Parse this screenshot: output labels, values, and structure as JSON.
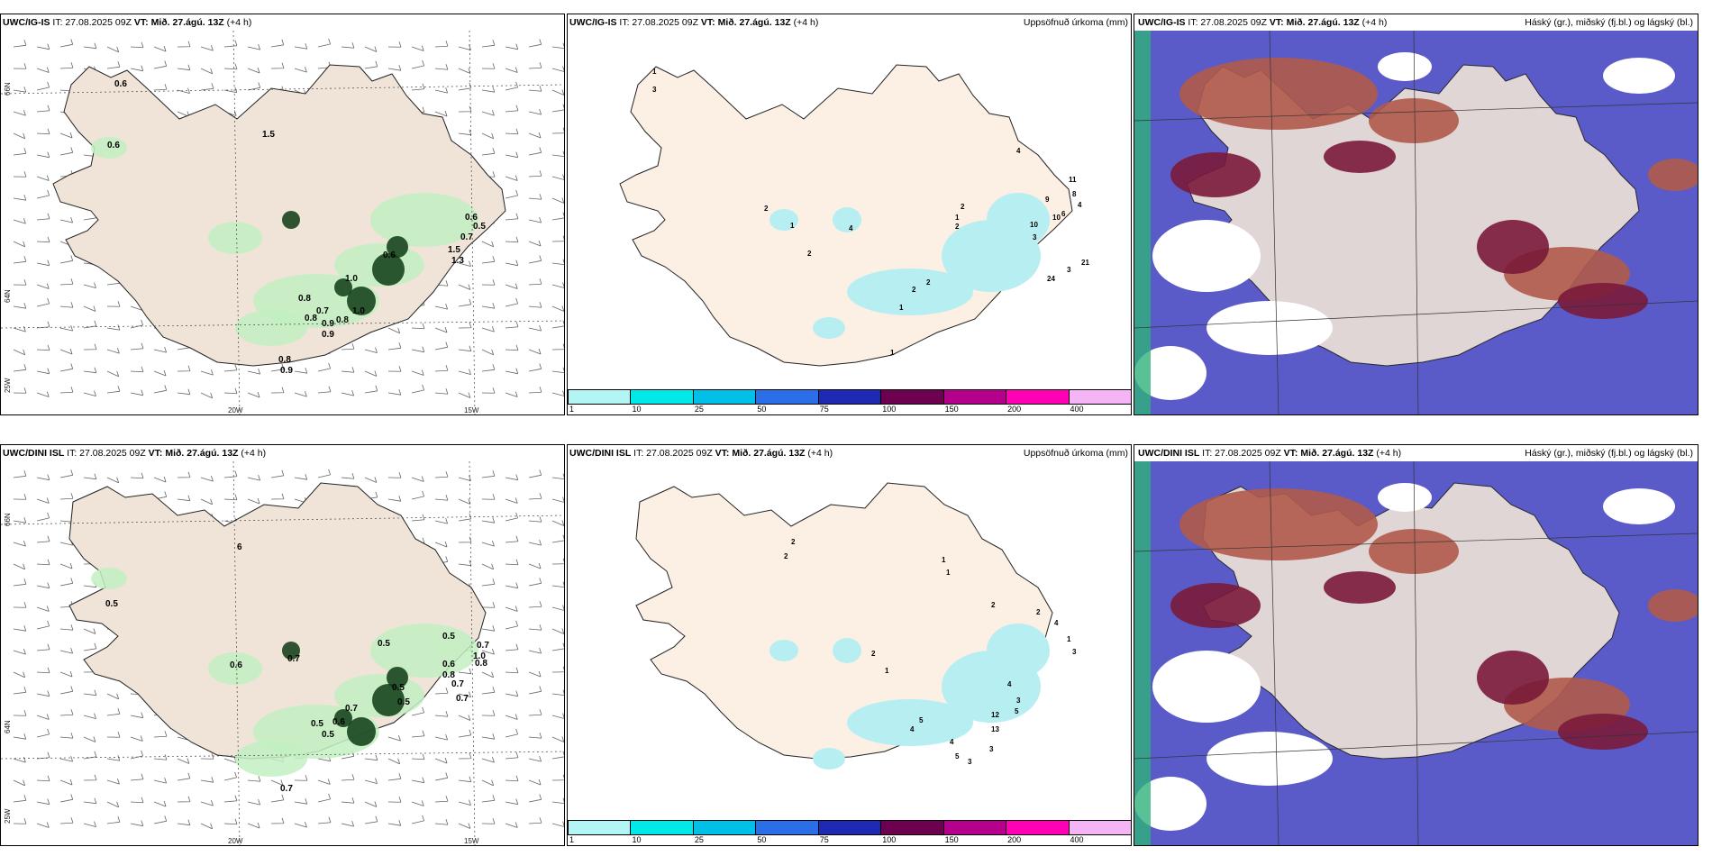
{
  "panels": {
    "row1": {
      "wind": {
        "model": "UWC/IG-IS",
        "it": "IT: 27.08.2025 09Z",
        "vt": "VT: Mið. 27.ágú. 13Z",
        "lead": "(+4 h)"
      },
      "precip": {
        "model": "UWC/IG-IS",
        "it": "IT: 27.08.2025 09Z",
        "vt": "VT: Mið. 27.ágú. 13Z",
        "lead": "(+4 h)",
        "right_title": "Uppsöfnuð úrkoma (mm)"
      },
      "cloud": {
        "model": "UWC/IG-IS",
        "it": "IT: 27.08.2025 09Z",
        "vt": "VT: Mið. 27.ágú. 13Z",
        "lead": "(+4 h)",
        "right_title": "Háský (gr.), miðský (fj.bl.) og lágský (bl.)"
      }
    },
    "row2": {
      "wind": {
        "model": "UWC/DINI ISL",
        "it": "IT: 27.08.2025 09Z",
        "vt": "VT: Mið. 27.ágú. 13Z",
        "lead": "(+4 h)"
      },
      "precip": {
        "model": "UWC/DINI ISL",
        "it": "IT: 27.08.2025 09Z",
        "vt": "VT: Mið. 27.ágú. 13Z",
        "lead": "(+4 h)",
        "right_title": "Uppsöfnuð úrkoma (mm)"
      },
      "cloud": {
        "model": "UWC/DINI ISL",
        "it": "IT: 27.08.2025 09Z",
        "vt": "VT: Mið. 27.ágú. 13Z",
        "lead": "(+4 h)",
        "right_title": "Háský (gr.), miðský (fj.bl.) og lágský (bl.)"
      }
    }
  },
  "axis_labels": {
    "lat_66": "66N",
    "lat_64": "64N",
    "lon_20": "20W",
    "lon_15": "15W",
    "lon_25": "25W"
  },
  "colorbar": {
    "labels": [
      "1",
      "10",
      "25",
      "50",
      "75",
      "100",
      "150",
      "200",
      "400"
    ],
    "colors": [
      "#b3f5f5",
      "#00e8e8",
      "#00c0e8",
      "#2a6ee8",
      "#1e2ab4",
      "#6e0050",
      "#b4008c",
      "#ff00b4",
      "#f5b4f5"
    ]
  },
  "wind_labels_row1": [
    "0.6",
    "1.5",
    "0.6",
    "0.6",
    "0.5",
    "0.7",
    "0.6",
    "1.0",
    "1.5",
    "1.3",
    "0.8",
    "0.7",
    "0.8",
    "1.0",
    "0.9",
    "0.8",
    "0.9",
    "0.8",
    "0.9"
  ],
  "wind_labels_row2": [
    "6",
    "0.5",
    "0.6",
    "0.7",
    "0.5",
    "0.5",
    "0.6",
    "0.8",
    "1.0",
    "0.7",
    "0.5",
    "0.7",
    "0.8",
    "0.5",
    "0.7",
    "0.5",
    "0.5",
    "0.6",
    "0.7",
    "0.7"
  ],
  "precip_labels_row1": [
    "1",
    "3",
    "2",
    "1",
    "2",
    "4",
    "1",
    "1",
    "2",
    "2",
    "1",
    "2",
    "2",
    "4",
    "10",
    "3",
    "9",
    "10",
    "6",
    "11",
    "8",
    "4",
    "3",
    "21",
    "24"
  ],
  "precip_labels_row2": [
    "2",
    "2",
    "2",
    "1",
    "1",
    "1",
    "2",
    "2",
    "4",
    "1",
    "3",
    "4",
    "3",
    "4",
    "5",
    "4",
    "5",
    "3",
    "3",
    "12",
    "13",
    "5"
  ],
  "colors": {
    "land": "#efe4d7",
    "land_light": "#fcefe4",
    "precip_light": "#b7eef2",
    "green_light": "#c2f0c2",
    "green_dark": "#0d3a14",
    "cloud_high": "#b05a4a",
    "cloud_mid": "#7a1a3a",
    "cloud_low": "#5a5bc8",
    "cloud_green": "#2fb27a"
  }
}
